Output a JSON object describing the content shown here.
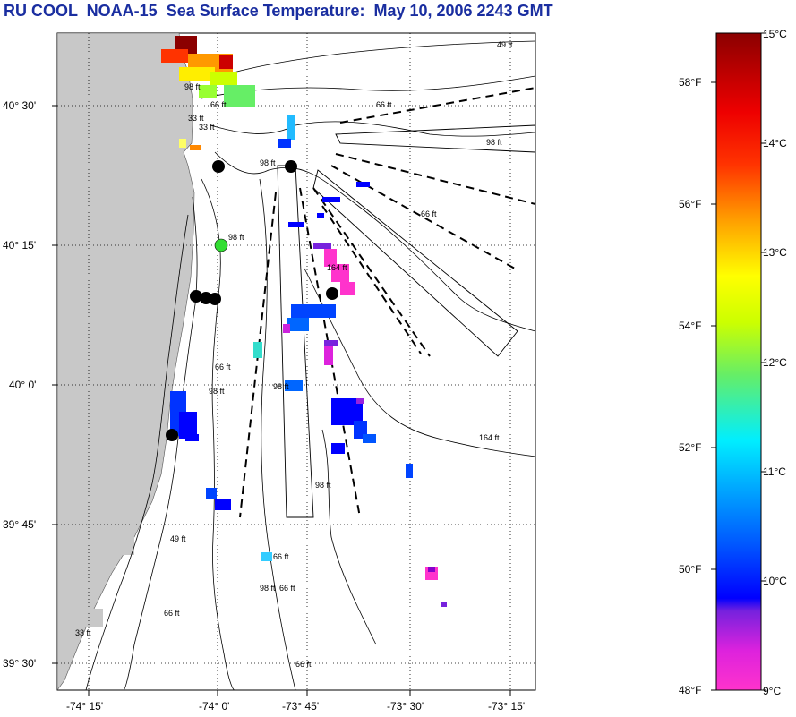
{
  "title": "RU COOL  NOAA-15  Sea Surface Temperature:  May 10, 2006 2243 GMT",
  "map": {
    "lon_labels": [
      "-74° 15'",
      "-74° 0'",
      "-73° 45'",
      "-73° 30'",
      "-73° 15'"
    ],
    "lat_labels": [
      "40° 30'",
      "40° 15'",
      "40° 0'",
      "39° 45'",
      "39° 30'"
    ],
    "contour_labels": [
      "49 ft",
      "66 ft",
      "98 ft",
      "98 ft",
      "33 ft",
      "98 ft",
      "66 ft",
      "98 ft",
      "164 ft",
      "164 ft",
      "66 ft",
      "66 ft",
      "66 ft",
      "66 ft",
      "33 ft",
      "98 ft",
      "66 ft",
      "66 ft",
      "98 ft",
      "33 ft",
      "49 ft",
      "98 ft",
      "98 ft"
    ],
    "colors": {
      "land": "#c8c8c8",
      "station_marker": "#000000",
      "highlight_marker": "#33dd33"
    }
  },
  "colorbar": {
    "celsius_labels": [
      "15°C",
      "14°C",
      "13°C",
      "12°C",
      "11°C",
      "10°C",
      "9°C"
    ],
    "fahrenheit_labels": [
      "58°F",
      "56°F",
      "54°F",
      "52°F",
      "50°F",
      "48°F"
    ],
    "min_c": 9,
    "max_c": 15
  }
}
